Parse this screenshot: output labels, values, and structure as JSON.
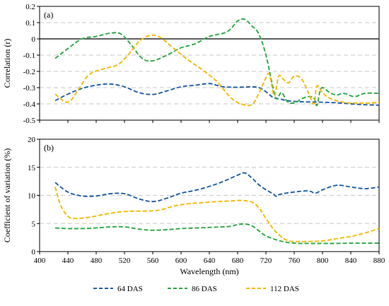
{
  "chart_data": [
    {
      "type": "line",
      "panel_label": "(a)",
      "ylabel": "Correlation (r)",
      "xlabel": "",
      "xlim": [
        400,
        880
      ],
      "ylim": [
        -0.5,
        0.2
      ],
      "yticks": [
        -0.5,
        -0.4,
        -0.3,
        -0.2,
        -0.1,
        0,
        0.1,
        0.2
      ],
      "ytick_labels": [
        "-0.5",
        "-0.4",
        "-0.3",
        "-0.2",
        "-0.1",
        "0",
        "0.1",
        "0.2"
      ],
      "xticks": [
        400,
        440,
        480,
        520,
        560,
        600,
        640,
        680,
        720,
        760,
        800,
        840,
        880
      ],
      "xtick_labels": [],
      "grid": "horizontal dashed",
      "zero_line": true,
      "series": [
        {
          "name": "64 DAS",
          "color": "#1f5fa8",
          "points": [
            [
              422,
              -0.38
            ],
            [
              440,
              -0.34
            ],
            [
              460,
              -0.305
            ],
            [
              480,
              -0.285
            ],
            [
              500,
              -0.278
            ],
            [
              520,
              -0.295
            ],
            [
              540,
              -0.33
            ],
            [
              560,
              -0.342
            ],
            [
              580,
              -0.32
            ],
            [
              600,
              -0.295
            ],
            [
              620,
              -0.285
            ],
            [
              640,
              -0.275
            ],
            [
              650,
              -0.285
            ],
            [
              660,
              -0.295
            ],
            [
              680,
              -0.298
            ],
            [
              700,
              -0.295
            ],
            [
              710,
              -0.3
            ],
            [
              720,
              -0.325
            ],
            [
              730,
              -0.36
            ],
            [
              740,
              -0.37
            ],
            [
              750,
              -0.38
            ],
            [
              760,
              -0.385
            ],
            [
              780,
              -0.388
            ],
            [
              800,
              -0.39
            ],
            [
              820,
              -0.393
            ],
            [
              840,
              -0.4
            ],
            [
              860,
              -0.405
            ],
            [
              880,
              -0.408
            ]
          ]
        },
        {
          "name": "86 DAS",
          "color": "#2ca944",
          "points": [
            [
              422,
              -0.12
            ],
            [
              440,
              -0.06
            ],
            [
              460,
              0.0
            ],
            [
              480,
              0.015
            ],
            [
              500,
              0.035
            ],
            [
              515,
              0.03
            ],
            [
              530,
              -0.04
            ],
            [
              545,
              -0.12
            ],
            [
              560,
              -0.135
            ],
            [
              580,
              -0.1
            ],
            [
              600,
              -0.055
            ],
            [
              620,
              -0.03
            ],
            [
              640,
              0.015
            ],
            [
              660,
              0.035
            ],
            [
              670,
              0.06
            ],
            [
              680,
              0.11
            ],
            [
              690,
              0.12
            ],
            [
              700,
              0.08
            ],
            [
              710,
              0.03
            ],
            [
              720,
              -0.1
            ],
            [
              730,
              -0.3
            ],
            [
              735,
              -0.37
            ],
            [
              742,
              -0.33
            ],
            [
              750,
              -0.385
            ],
            [
              760,
              -0.395
            ],
            [
              770,
              -0.37
            ],
            [
              780,
              -0.355
            ],
            [
              788,
              -0.365
            ],
            [
              792,
              -0.41
            ],
            [
              796,
              -0.33
            ],
            [
              800,
              -0.3
            ],
            [
              810,
              -0.33
            ],
            [
              820,
              -0.345
            ],
            [
              830,
              -0.335
            ],
            [
              845,
              -0.355
            ],
            [
              860,
              -0.335
            ],
            [
              880,
              -0.335
            ]
          ]
        },
        {
          "name": "112 DAS",
          "color": "#f5b800",
          "points": [
            [
              422,
              -0.34
            ],
            [
              440,
              -0.39
            ],
            [
              455,
              -0.31
            ],
            [
              470,
              -0.22
            ],
            [
              490,
              -0.185
            ],
            [
              510,
              -0.16
            ],
            [
              525,
              -0.1
            ],
            [
              540,
              -0.02
            ],
            [
              555,
              0.02
            ],
            [
              570,
              0.01
            ],
            [
              590,
              -0.06
            ],
            [
              610,
              -0.13
            ],
            [
              630,
              -0.19
            ],
            [
              650,
              -0.26
            ],
            [
              670,
              -0.36
            ],
            [
              685,
              -0.4
            ],
            [
              700,
              -0.405
            ],
            [
              710,
              -0.335
            ],
            [
              720,
              -0.24
            ],
            [
              725,
              -0.22
            ],
            [
              732,
              -0.35
            ],
            [
              738,
              -0.23
            ],
            [
              745,
              -0.25
            ],
            [
              752,
              -0.27
            ],
            [
              760,
              -0.23
            ],
            [
              770,
              -0.245
            ],
            [
              780,
              -0.33
            ],
            [
              788,
              -0.4
            ],
            [
              792,
              -0.29
            ],
            [
              800,
              -0.33
            ],
            [
              810,
              -0.365
            ],
            [
              830,
              -0.39
            ],
            [
              850,
              -0.395
            ],
            [
              865,
              -0.395
            ],
            [
              880,
              -0.39
            ]
          ]
        }
      ]
    },
    {
      "type": "line",
      "panel_label": "(b)",
      "ylabel": "Coefficient of variation (%)",
      "xlabel": "Wavelength (nm)",
      "xlim": [
        400,
        880
      ],
      "ylim": [
        0,
        20
      ],
      "yticks": [
        0,
        5,
        10,
        15,
        20
      ],
      "ytick_labels": [
        "0",
        "5",
        "10",
        "15",
        "20"
      ],
      "xticks": [
        400,
        440,
        480,
        520,
        560,
        600,
        640,
        680,
        720,
        760,
        800,
        840,
        880
      ],
      "xtick_labels": [
        "400",
        "440",
        "480",
        "520",
        "560",
        "600",
        "640",
        "680",
        "720",
        "760",
        "800",
        "840",
        "880"
      ],
      "grid": "horizontal dashed",
      "series": [
        {
          "name": "64 DAS",
          "color": "#1f5fa8",
          "points": [
            [
              422,
              12.3
            ],
            [
              440,
              10.6
            ],
            [
              460,
              9.9
            ],
            [
              480,
              9.9
            ],
            [
              500,
              10.3
            ],
            [
              520,
              10.3
            ],
            [
              540,
              9.4
            ],
            [
              560,
              8.9
            ],
            [
              580,
              9.5
            ],
            [
              600,
              10.4
            ],
            [
              620,
              10.9
            ],
            [
              640,
              11.6
            ],
            [
              660,
              12.5
            ],
            [
              680,
              13.6
            ],
            [
              690,
              14.0
            ],
            [
              700,
              13.1
            ],
            [
              710,
              11.9
            ],
            [
              720,
              11.0
            ],
            [
              730,
              10.3
            ],
            [
              735,
              9.8
            ],
            [
              740,
              10.2
            ],
            [
              760,
              10.6
            ],
            [
              780,
              10.8
            ],
            [
              790,
              10.4
            ],
            [
              800,
              11.0
            ],
            [
              820,
              11.8
            ],
            [
              840,
              11.5
            ],
            [
              860,
              11.2
            ],
            [
              880,
              11.5
            ]
          ]
        },
        {
          "name": "86 DAS",
          "color": "#2ca944",
          "points": [
            [
              422,
              4.2
            ],
            [
              440,
              4.1
            ],
            [
              460,
              4.1
            ],
            [
              480,
              4.2
            ],
            [
              500,
              4.4
            ],
            [
              520,
              4.4
            ],
            [
              540,
              4.0
            ],
            [
              560,
              3.8
            ],
            [
              580,
              3.9
            ],
            [
              600,
              4.1
            ],
            [
              620,
              4.2
            ],
            [
              640,
              4.3
            ],
            [
              660,
              4.4
            ],
            [
              670,
              4.5
            ],
            [
              680,
              4.8
            ],
            [
              690,
              4.9
            ],
            [
              700,
              4.6
            ],
            [
              710,
              3.7
            ],
            [
              720,
              2.8
            ],
            [
              740,
              1.9
            ],
            [
              760,
              1.5
            ],
            [
              780,
              1.45
            ],
            [
              800,
              1.45
            ],
            [
              820,
              1.45
            ],
            [
              840,
              1.5
            ],
            [
              860,
              1.5
            ],
            [
              880,
              1.5
            ]
          ]
        },
        {
          "name": "112 DAS",
          "color": "#f5b800",
          "points": [
            [
              422,
              11.5
            ],
            [
              430,
              8.2
            ],
            [
              440,
              6.3
            ],
            [
              450,
              5.9
            ],
            [
              470,
              6.1
            ],
            [
              490,
              6.6
            ],
            [
              510,
              7.0
            ],
            [
              530,
              7.2
            ],
            [
              550,
              7.2
            ],
            [
              570,
              7.4
            ],
            [
              590,
              8.1
            ],
            [
              610,
              8.5
            ],
            [
              630,
              8.7
            ],
            [
              650,
              8.9
            ],
            [
              670,
              9.0
            ],
            [
              685,
              9.1
            ],
            [
              700,
              8.8
            ],
            [
              710,
              7.8
            ],
            [
              720,
              5.9
            ],
            [
              730,
              4.1
            ],
            [
              740,
              2.8
            ],
            [
              750,
              2.0
            ],
            [
              760,
              1.8
            ],
            [
              780,
              1.8
            ],
            [
              800,
              1.9
            ],
            [
              820,
              2.3
            ],
            [
              840,
              2.7
            ],
            [
              860,
              3.3
            ],
            [
              880,
              4.1
            ]
          ]
        }
      ]
    }
  ],
  "legend": {
    "placement": "bottom",
    "entries": [
      "64 DAS",
      "86 DAS",
      "112 DAS"
    ]
  }
}
